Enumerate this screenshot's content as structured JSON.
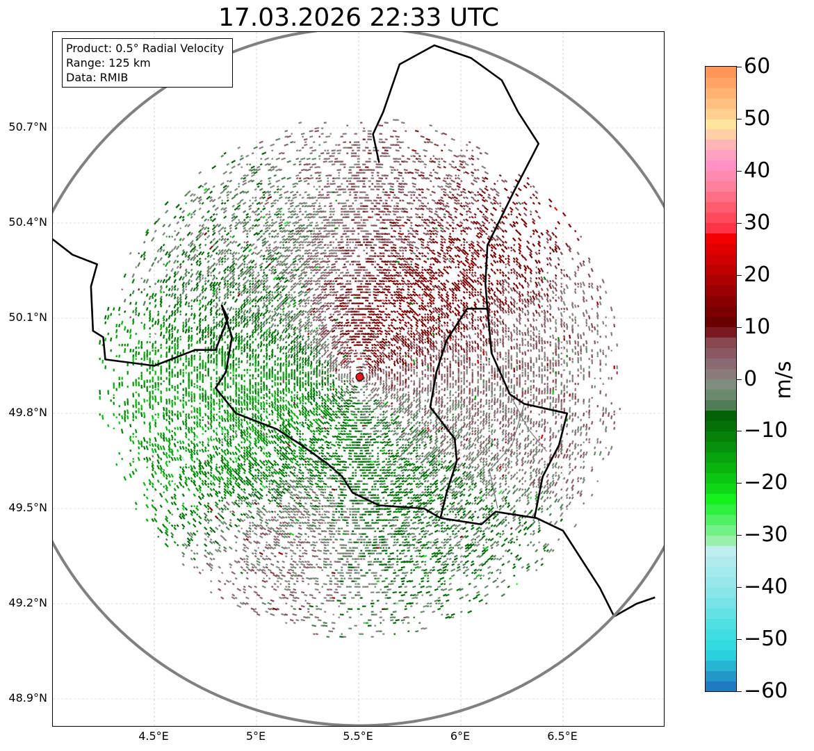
{
  "title": "17.03.2026 22:33 UTC",
  "info": {
    "product": "Product: 0.5° Radial Velocity",
    "range": "Range: 125 km",
    "data_source": "Data: RMIB"
  },
  "axes": {
    "lat_ticks": [
      {
        "value": 50.7,
        "label": "50.7°N"
      },
      {
        "value": 50.4,
        "label": "50.4°N"
      },
      {
        "value": 50.1,
        "label": "50.1°N"
      },
      {
        "value": 49.8,
        "label": "49.8°N"
      },
      {
        "value": 49.5,
        "label": "49.5°N"
      },
      {
        "value": 49.2,
        "label": "49.2°N"
      },
      {
        "value": 48.9,
        "label": "48.9°N"
      }
    ],
    "lon_ticks": [
      {
        "value": 4.5,
        "label": "4.5°E"
      },
      {
        "value": 5.0,
        "label": "5°E"
      },
      {
        "value": 5.5,
        "label": "5.5°E"
      },
      {
        "value": 6.0,
        "label": "6°E"
      },
      {
        "value": 6.5,
        "label": "6.5°E"
      }
    ]
  },
  "radar": {
    "site_lon": 5.505,
    "site_lat": 49.915,
    "range_km": 125,
    "site_color": "#e8141e",
    "range_ring_color": "#808080"
  },
  "colorbar": {
    "unit": "m/s",
    "vmin": -60,
    "vmax": 60,
    "ticks": [
      {
        "value": 60,
        "label": "60"
      },
      {
        "value": 50,
        "label": "50"
      },
      {
        "value": 40,
        "label": "40"
      },
      {
        "value": 30,
        "label": "30"
      },
      {
        "value": 20,
        "label": "20"
      },
      {
        "value": 10,
        "label": "10"
      },
      {
        "value": 0,
        "label": "0"
      },
      {
        "value": -10,
        "label": "−10"
      },
      {
        "value": -20,
        "label": "−20"
      },
      {
        "value": -30,
        "label": "−30"
      },
      {
        "value": -40,
        "label": "−40"
      },
      {
        "value": -50,
        "label": "−50"
      },
      {
        "value": -60,
        "label": "−60"
      }
    ],
    "segments": [
      {
        "from": -60,
        "to": -58,
        "color": "#1f7bc1"
      },
      {
        "from": -58,
        "to": -56,
        "color": "#2497c9"
      },
      {
        "from": -56,
        "to": -54,
        "color": "#27b3d2"
      },
      {
        "from": -54,
        "to": -52,
        "color": "#2ad0dc"
      },
      {
        "from": -52,
        "to": -50,
        "color": "#33dbe0"
      },
      {
        "from": -50,
        "to": -48,
        "color": "#3ddde0"
      },
      {
        "from": -48,
        "to": -46,
        "color": "#4fe0e2"
      },
      {
        "from": -46,
        "to": -44,
        "color": "#62e2e4"
      },
      {
        "from": -44,
        "to": -42,
        "color": "#74e4e6"
      },
      {
        "from": -42,
        "to": -40,
        "color": "#86e6e8"
      },
      {
        "from": -40,
        "to": -38,
        "color": "#96e8ea"
      },
      {
        "from": -38,
        "to": -36,
        "color": "#a3eaec"
      },
      {
        "from": -36,
        "to": -34,
        "color": "#b1eced"
      },
      {
        "from": -34,
        "to": -32,
        "color": "#bfeeef"
      },
      {
        "from": -32,
        "to": -30,
        "color": "#99f0aa"
      },
      {
        "from": -30,
        "to": -28,
        "color": "#73f087"
      },
      {
        "from": -28,
        "to": -26,
        "color": "#4ff063"
      },
      {
        "from": -26,
        "to": -24,
        "color": "#2ef03f"
      },
      {
        "from": -24,
        "to": -22,
        "color": "#13f01c"
      },
      {
        "from": -22,
        "to": -20,
        "color": "#0ed715"
      },
      {
        "from": -20,
        "to": -18,
        "color": "#0bc612"
      },
      {
        "from": -18,
        "to": -16,
        "color": "#09b40f"
      },
      {
        "from": -16,
        "to": -14,
        "color": "#07a30c"
      },
      {
        "from": -14,
        "to": -12,
        "color": "#05920a"
      },
      {
        "from": -12,
        "to": -10,
        "color": "#038108"
      },
      {
        "from": -10,
        "to": -8,
        "color": "#027206"
      },
      {
        "from": -8,
        "to": -6,
        "color": "#016305"
      },
      {
        "from": -6,
        "to": -4,
        "color": "#4f7d55"
      },
      {
        "from": -4,
        "to": -2,
        "color": "#6a8a6e"
      },
      {
        "from": -2,
        "to": 0,
        "color": "#7f8d7f"
      },
      {
        "from": 0,
        "to": 2,
        "color": "#8a7b7b"
      },
      {
        "from": 2,
        "to": 4,
        "color": "#8a6a72"
      },
      {
        "from": 4,
        "to": 6,
        "color": "#8a5862"
      },
      {
        "from": 6,
        "to": 8,
        "color": "#874850"
      },
      {
        "from": 8,
        "to": 10,
        "color": "#7a1a20"
      },
      {
        "from": 10,
        "to": 12,
        "color": "#6a0000"
      },
      {
        "from": 12,
        "to": 14,
        "color": "#7a0000"
      },
      {
        "from": 14,
        "to": 16,
        "color": "#8a0000"
      },
      {
        "from": 16,
        "to": 18,
        "color": "#9c0000"
      },
      {
        "from": 18,
        "to": 20,
        "color": "#ad0000"
      },
      {
        "from": 20,
        "to": 22,
        "color": "#bf0000"
      },
      {
        "from": 22,
        "to": 24,
        "color": "#d00000"
      },
      {
        "from": 24,
        "to": 26,
        "color": "#e00000"
      },
      {
        "from": 26,
        "to": 28,
        "color": "#f20000"
      },
      {
        "from": 28,
        "to": 30,
        "color": "#ff3344"
      },
      {
        "from": 30,
        "to": 32,
        "color": "#ff4a5a"
      },
      {
        "from": 32,
        "to": 34,
        "color": "#ff5c6f"
      },
      {
        "from": 34,
        "to": 36,
        "color": "#ff6e85"
      },
      {
        "from": 36,
        "to": 38,
        "color": "#ff7f9a"
      },
      {
        "from": 38,
        "to": 40,
        "color": "#ff8ab0"
      },
      {
        "from": 40,
        "to": 42,
        "color": "#ff90c4"
      },
      {
        "from": 42,
        "to": 44,
        "color": "#ffa0c0"
      },
      {
        "from": 44,
        "to": 46,
        "color": "#ffb5b5"
      },
      {
        "from": 46,
        "to": 48,
        "color": "#ffd0a8"
      },
      {
        "from": 48,
        "to": 50,
        "color": "#ffe49c"
      },
      {
        "from": 50,
        "to": 52,
        "color": "#ffd08e"
      },
      {
        "from": 52,
        "to": 54,
        "color": "#ffc080"
      },
      {
        "from": 54,
        "to": 56,
        "color": "#ffb272"
      },
      {
        "from": 56,
        "to": 58,
        "color": "#ffa464"
      },
      {
        "from": 58,
        "to": 60,
        "color": "#ff9656"
      }
    ]
  },
  "velocity_field": {
    "blobs": [
      {
        "lon": 5.72,
        "lat": 50.12,
        "v": 14,
        "spread": 0.13
      },
      {
        "lon": 5.55,
        "lat": 50.15,
        "v": 18,
        "spread": 0.1
      },
      {
        "lon": 5.5,
        "lat": 50.3,
        "v": 4,
        "spread": 0.14
      },
      {
        "lon": 5.15,
        "lat": 50.2,
        "v": -4,
        "spread": 0.15
      },
      {
        "lon": 4.95,
        "lat": 49.85,
        "v": -14,
        "spread": 0.14
      },
      {
        "lon": 5.15,
        "lat": 49.7,
        "v": -12,
        "spread": 0.13
      },
      {
        "lon": 5.6,
        "lat": 49.62,
        "v": -11,
        "spread": 0.14
      },
      {
        "lon": 5.9,
        "lat": 49.85,
        "v": 2,
        "spread": 0.14
      },
      {
        "lon": 5.7,
        "lat": 49.42,
        "v": -5,
        "spread": 0.14
      },
      {
        "lon": 5.25,
        "lat": 49.45,
        "v": 3,
        "spread": 0.12
      }
    ],
    "outer_radius_km": 92,
    "density": 0.55
  },
  "borders": {
    "thick": [
      [
        [
          4.0,
          50.35
        ],
        [
          4.1,
          50.3
        ],
        [
          4.22,
          50.27
        ],
        [
          4.19,
          50.2
        ],
        [
          4.2,
          50.06
        ],
        [
          4.25,
          50.04
        ],
        [
          4.26,
          49.97
        ],
        [
          4.5,
          49.95
        ],
        [
          4.7,
          50.0
        ],
        [
          4.8,
          50.0
        ],
        [
          4.86,
          50.1
        ],
        [
          4.83,
          50.14
        ],
        [
          4.88,
          50.04
        ],
        [
          4.85,
          49.93
        ],
        [
          4.8,
          49.88
        ],
        [
          4.9,
          49.8
        ],
        [
          5.1,
          49.75
        ],
        [
          5.22,
          49.7
        ],
        [
          5.35,
          49.64
        ],
        [
          5.42,
          49.6
        ],
        [
          5.47,
          49.55
        ],
        [
          5.6,
          49.51
        ],
        [
          5.82,
          49.5
        ],
        [
          5.9,
          49.47
        ]
      ],
      [
        [
          5.9,
          49.47
        ],
        [
          6.1,
          49.45
        ],
        [
          6.17,
          49.49
        ],
        [
          6.37,
          49.47
        ],
        [
          6.5,
          49.43
        ],
        [
          6.58,
          49.35
        ],
        [
          6.68,
          49.25
        ],
        [
          6.75,
          49.16
        ],
        [
          6.86,
          49.2
        ],
        [
          6.95,
          49.22
        ]
      ],
      [
        [
          5.9,
          49.47
        ],
        [
          5.93,
          49.55
        ],
        [
          5.98,
          49.65
        ],
        [
          5.97,
          49.72
        ],
        [
          5.85,
          49.82
        ],
        [
          5.88,
          49.93
        ],
        [
          5.93,
          50.03
        ],
        [
          6.03,
          50.13
        ],
        [
          6.13,
          50.13
        ],
        [
          6.12,
          50.21
        ],
        [
          6.13,
          50.33
        ],
        [
          6.26,
          50.5
        ],
        [
          6.38,
          50.65
        ],
        [
          6.28,
          50.75
        ],
        [
          6.2,
          50.85
        ],
        [
          6.05,
          50.92
        ],
        [
          5.87,
          50.96
        ],
        [
          5.7,
          50.9
        ],
        [
          5.62,
          50.75
        ],
        [
          5.57,
          50.68
        ],
        [
          5.6,
          50.59
        ]
      ],
      [
        [
          6.13,
          50.13
        ],
        [
          6.15,
          49.99
        ],
        [
          6.24,
          49.86
        ],
        [
          6.31,
          49.83
        ],
        [
          6.45,
          49.81
        ],
        [
          6.52,
          49.8
        ],
        [
          6.48,
          49.7
        ],
        [
          6.4,
          49.6
        ],
        [
          6.36,
          49.47
        ]
      ]
    ],
    "thin": [
      [
        [
          6.31,
          49.83
        ],
        [
          6.25,
          49.7
        ],
        [
          6.14,
          49.62
        ],
        [
          6.18,
          49.5
        ]
      ],
      [
        [
          6.24,
          49.86
        ],
        [
          6.33,
          49.75
        ],
        [
          6.42,
          49.68
        ]
      ]
    ]
  }
}
